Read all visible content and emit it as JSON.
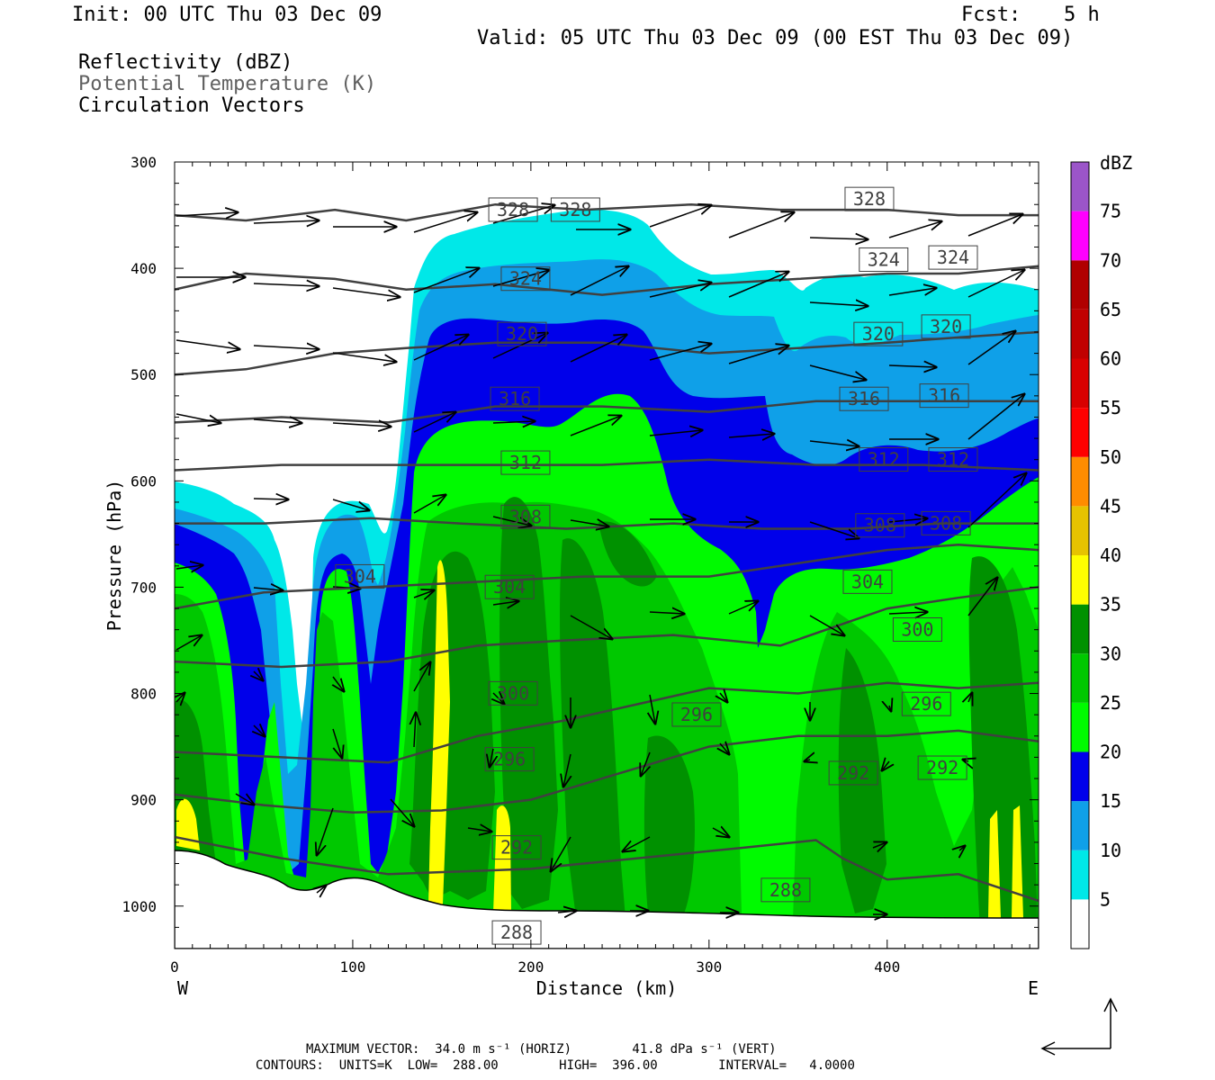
{
  "header": {
    "init": "Init: 00 UTC Thu 03 Dec 09",
    "fcst_label": "Fcst:",
    "fcst_value": "5 h",
    "valid": "Valid: 05 UTC Thu 03 Dec 09 (00 EST Thu 03 Dec 09)"
  },
  "fields": {
    "line1": "Reflectivity (dBZ)",
    "line2": "Potential Temperature (K)",
    "line3": "Circulation Vectors"
  },
  "footer": {
    "max_vector": "MAXIMUM VECTOR:  34.0 m s⁻¹ (HORIZ)        41.8 dPa s⁻¹ (VERT)",
    "contours": "CONTOURS:  UNITS=K  LOW=  288.00        HIGH=  396.00        INTERVAL=   4.0000"
  },
  "colors": {
    "c5": "#00e8e8",
    "c10": "#0fa0e8",
    "c15": "#0000ea",
    "c20": "#00fa00",
    "c25": "#00c800",
    "c30": "#009100",
    "c35": "#ffff00",
    "c40": "#e6c300",
    "c45": "#ff8c00",
    "c50": "#ff0000",
    "c55": "#d80000",
    "c60": "#c00000",
    "c65": "#b00000",
    "c70": "#ff00ff",
    "c75": "#9b55c9",
    "theta_line": "#404040"
  },
  "chart_data": {
    "type": "cross-section",
    "xlabel": "Distance (km)",
    "ylabel": "Pressure (hPa)",
    "x_ticks": [
      0,
      100,
      200,
      300,
      400
    ],
    "xlim": [
      0,
      485
    ],
    "y_ticks": [
      300,
      400,
      500,
      600,
      700,
      800,
      900,
      1000
    ],
    "ylim": [
      300,
      1040
    ],
    "left_end_label": "W",
    "right_end_label": "E",
    "colorbar": {
      "title": "dBZ",
      "levels": [
        5,
        10,
        15,
        20,
        25,
        30,
        35,
        40,
        45,
        50,
        55,
        60,
        65,
        70,
        75
      ]
    },
    "theta_contours": [
      {
        "value": 288,
        "x": [
          0,
          60,
          120,
          200,
          260,
          320,
          360,
          375,
          400,
          440,
          485
        ],
        "p": [
          935,
          955,
          970,
          965,
          955,
          945,
          938,
          955,
          975,
          970,
          995
        ]
      },
      {
        "value": 292,
        "x": [
          0,
          50,
          100,
          150,
          200,
          250,
          300,
          350,
          400,
          440,
          485
        ],
        "p": [
          895,
          905,
          912,
          910,
          900,
          875,
          850,
          840,
          840,
          835,
          845
        ]
      },
      {
        "value": 296,
        "x": [
          0,
          60,
          120,
          170,
          220,
          260,
          300,
          350,
          400,
          440,
          485
        ],
        "p": [
          855,
          860,
          865,
          840,
          825,
          810,
          795,
          800,
          790,
          795,
          790
        ]
      },
      {
        "value": 300,
        "x": [
          0,
          60,
          120,
          170,
          220,
          280,
          340,
          400,
          440,
          485
        ],
        "p": [
          770,
          775,
          770,
          755,
          750,
          745,
          755,
          720,
          710,
          700
        ]
      },
      {
        "value": 304,
        "x": [
          0,
          50,
          110,
          170,
          230,
          300,
          360,
          400,
          440,
          485
        ],
        "p": [
          720,
          705,
          700,
          695,
          690,
          690,
          675,
          665,
          660,
          665
        ]
      },
      {
        "value": 308,
        "x": [
          0,
          50,
          110,
          160,
          220,
          280,
          330,
          380,
          430,
          485
        ],
        "p": [
          640,
          640,
          635,
          640,
          645,
          640,
          645,
          645,
          640,
          640
        ]
      },
      {
        "value": 312,
        "x": [
          0,
          60,
          120,
          180,
          240,
          300,
          360,
          420,
          485
        ],
        "p": [
          590,
          585,
          585,
          585,
          585,
          580,
          585,
          585,
          590
        ]
      },
      {
        "value": 316,
        "x": [
          0,
          60,
          120,
          180,
          240,
          300,
          360,
          420,
          485
        ],
        "p": [
          545,
          540,
          545,
          530,
          530,
          535,
          525,
          525,
          525
        ]
      },
      {
        "value": 320,
        "x": [
          0,
          40,
          90,
          130,
          180,
          240,
          300,
          350,
          400,
          440,
          485
        ],
        "p": [
          500,
          495,
          480,
          475,
          470,
          470,
          480,
          475,
          470,
          465,
          460
        ]
      },
      {
        "value": 324,
        "x": [
          0,
          40,
          90,
          130,
          180,
          240,
          300,
          350,
          400,
          440,
          485
        ],
        "p": [
          420,
          405,
          410,
          420,
          415,
          425,
          415,
          410,
          405,
          405,
          398
        ]
      },
      {
        "value": 328,
        "x": [
          0,
          40,
          90,
          130,
          180,
          230,
          290,
          340,
          400,
          440,
          485
        ],
        "p": [
          350,
          355,
          345,
          355,
          340,
          345,
          340,
          345,
          345,
          350,
          350
        ]
      }
    ],
    "theta_labels": [
      {
        "text": "328",
        "x": 190,
        "p": 355
      },
      {
        "text": "328",
        "x": 225,
        "p": 355
      },
      {
        "text": "328",
        "x": 390,
        "p": 345
      },
      {
        "text": "324",
        "x": 197,
        "p": 420
      },
      {
        "text": "324",
        "x": 398,
        "p": 402
      },
      {
        "text": "324",
        "x": 437,
        "p": 400
      },
      {
        "text": "320",
        "x": 195,
        "p": 472
      },
      {
        "text": "320",
        "x": 395,
        "p": 472
      },
      {
        "text": "320",
        "x": 433,
        "p": 465
      },
      {
        "text": "316",
        "x": 191,
        "p": 533
      },
      {
        "text": "316",
        "x": 387,
        "p": 533
      },
      {
        "text": "316",
        "x": 432,
        "p": 530
      },
      {
        "text": "312",
        "x": 197,
        "p": 593
      },
      {
        "text": "312",
        "x": 398,
        "p": 590
      },
      {
        "text": "312",
        "x": 437,
        "p": 590
      },
      {
        "text": "308",
        "x": 197,
        "p": 644
      },
      {
        "text": "308",
        "x": 396,
        "p": 652
      },
      {
        "text": "308",
        "x": 433,
        "p": 650
      },
      {
        "text": "304",
        "x": 104,
        "p": 700
      },
      {
        "text": "304",
        "x": 188,
        "p": 710
      },
      {
        "text": "304",
        "x": 389,
        "p": 705
      },
      {
        "text": "300",
        "x": 190,
        "p": 810
      },
      {
        "text": "300",
        "x": 417,
        "p": 750
      },
      {
        "text": "296",
        "x": 188,
        "p": 872
      },
      {
        "text": "296",
        "x": 293,
        "p": 830
      },
      {
        "text": "296",
        "x": 422,
        "p": 820
      },
      {
        "text": "292",
        "x": 192,
        "p": 955
      },
      {
        "text": "292",
        "x": 381,
        "p": 885
      },
      {
        "text": "292",
        "x": 431,
        "p": 880
      },
      {
        "text": "288",
        "x": 192,
        "p": 1035
      },
      {
        "text": "288",
        "x": 343,
        "p": 995
      }
    ]
  }
}
